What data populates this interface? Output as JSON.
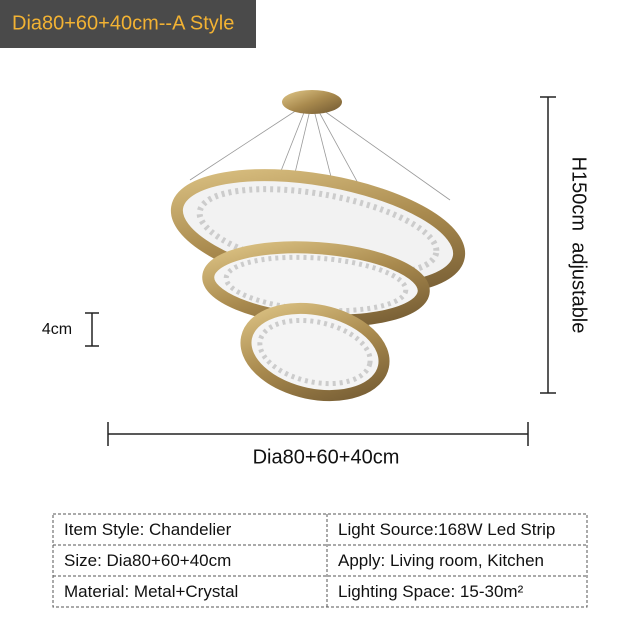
{
  "header": {
    "label": "Dia80+60+40cm--A Style"
  },
  "dimensions": {
    "height": "H150cm  adjustable",
    "diameter": "Dia80+60+40cm",
    "ring_gap": "4cm"
  },
  "table": {
    "rows": [
      [
        "Item Style: Chandelier",
        "Light Source:168W Led Strip"
      ],
      [
        "Size: Dia80+60+40cm",
        "Apply: Living room, Kitchen"
      ],
      [
        "Material: Metal+Crystal",
        "Lighting Space: 15-30m²"
      ]
    ]
  }
}
